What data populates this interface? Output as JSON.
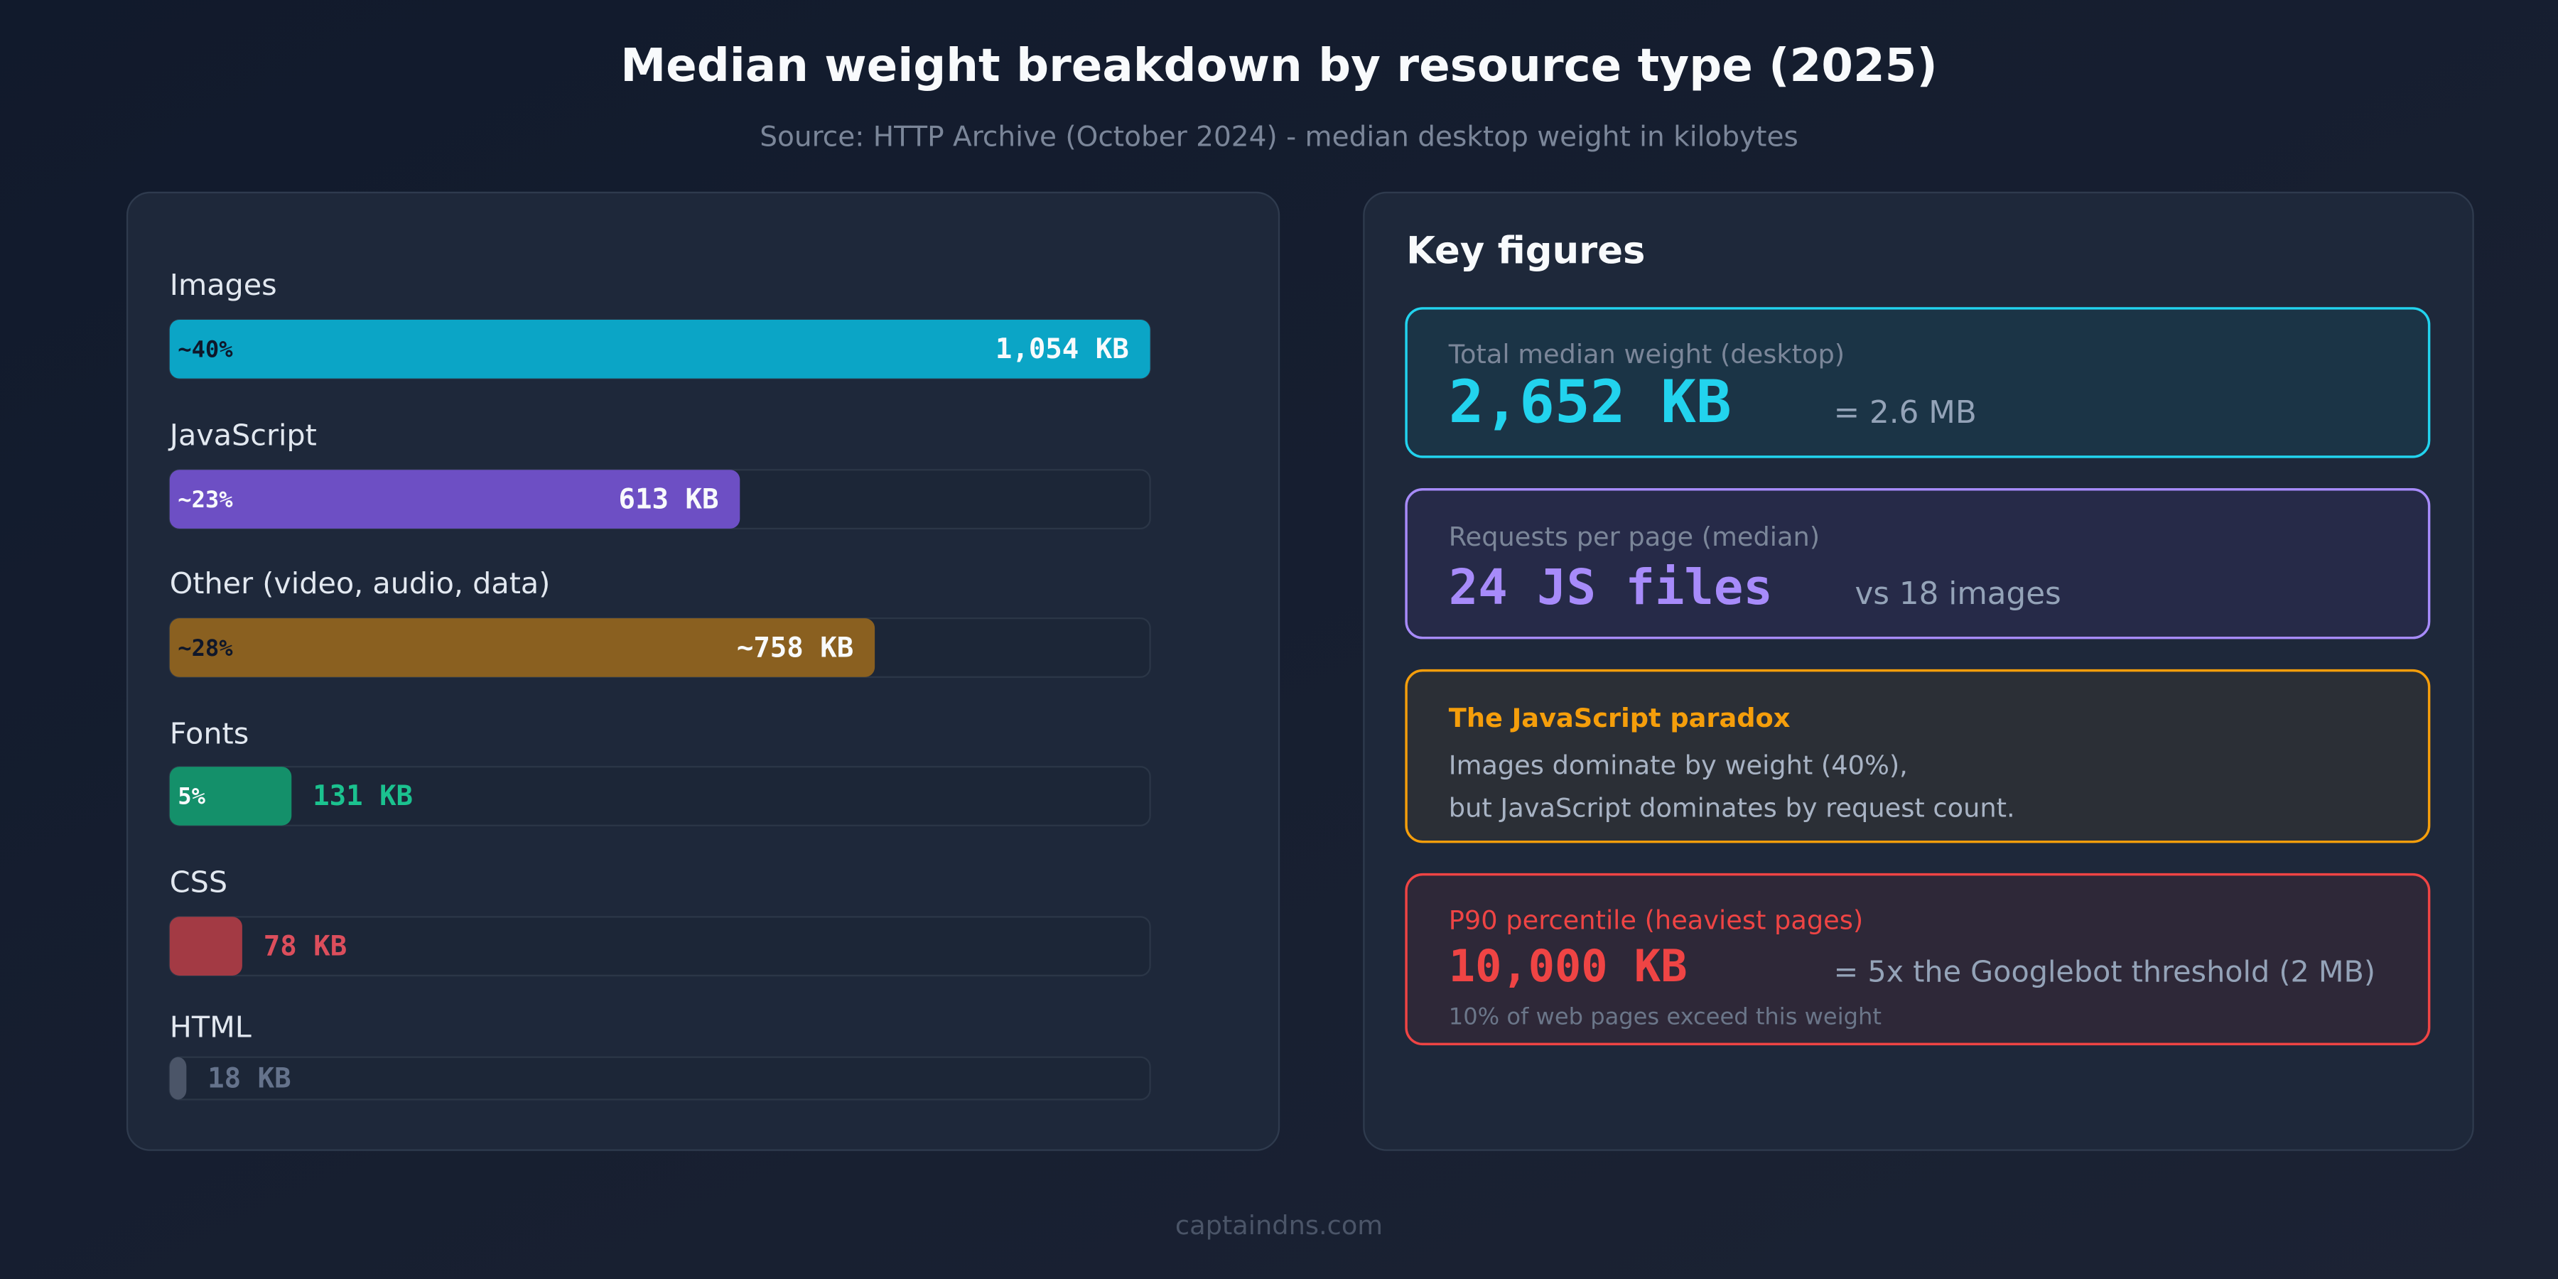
{
  "chart_data": {
    "type": "bar",
    "title": "Median weight breakdown by resource type (2025)",
    "subtitle": "Source: HTTP Archive (October 2024) - median desktop weight in kilobytes",
    "categories": [
      "Images",
      "JavaScript",
      "Other (video, audio, data)",
      "Fonts",
      "CSS",
      "HTML"
    ],
    "values": [
      1054,
      613,
      758,
      131,
      78,
      18
    ],
    "value_labels": [
      "1,054 KB",
      "613 KB",
      "~758 KB",
      "131 KB",
      "78 KB",
      "18 KB"
    ],
    "share_labels": [
      "~40%",
      "~23%",
      "~28%",
      "5%",
      null,
      null
    ],
    "colors": [
      "#0ba5c6",
      "#6d4fc4",
      "#8a6020",
      "#14906a",
      "#a33a44",
      "#4b5568"
    ]
  },
  "key_figures": {
    "title": "Key figures",
    "cards": [
      {
        "label": "Total median weight (desktop)",
        "value": "2,652 KB",
        "note": "= 2.6 MB"
      },
      {
        "label": "Requests per page (median)",
        "value": "24 JS files",
        "note": "vs 18 images"
      },
      {
        "label": "The JavaScript paradox",
        "lines": [
          "Images dominate by weight (40%),",
          "but JavaScript dominates by request count."
        ]
      },
      {
        "label": "P90 percentile (heaviest pages)",
        "value": "10,000 KB",
        "note": "= 5x the Googlebot threshold (2 MB)",
        "footnote": "10% of web pages exceed this weight"
      }
    ]
  },
  "footer": "captaindns.com"
}
